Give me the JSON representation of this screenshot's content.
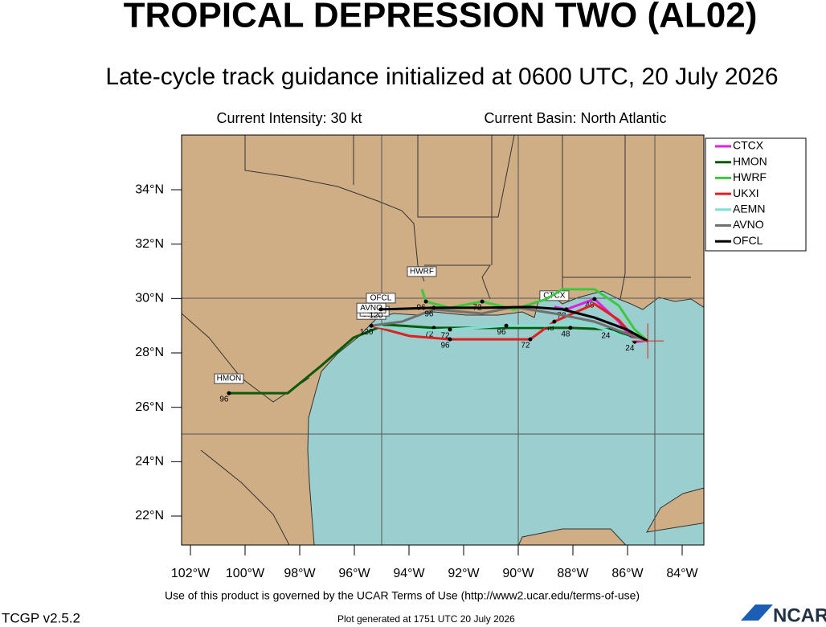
{
  "header": {
    "title": "TROPICAL DEPRESSION TWO (AL02)",
    "subtitle": "Late-cycle track guidance initialized at 0600 UTC, 20 July 2026",
    "intensity": "Current Intensity: 30 kt",
    "basin": "Current Basin: North Atlantic"
  },
  "map": {
    "lat_ticks": [
      {
        "value": 34,
        "label": "34°N"
      },
      {
        "value": 32,
        "label": "32°N"
      },
      {
        "value": 30,
        "label": "30°N"
      },
      {
        "value": 28,
        "label": "28°N"
      },
      {
        "value": 26,
        "label": "26°N"
      },
      {
        "value": 24,
        "label": "24°N"
      },
      {
        "value": 22,
        "label": "22°N"
      }
    ],
    "lon_ticks": [
      {
        "value": -102,
        "label": "102°W"
      },
      {
        "value": -100,
        "label": "100°W"
      },
      {
        "value": -98,
        "label": "98°W"
      },
      {
        "value": -96,
        "label": "96°W"
      },
      {
        "value": -94,
        "label": "94°W"
      },
      {
        "value": -92,
        "label": "92°W"
      },
      {
        "value": -90,
        "label": "90°W"
      },
      {
        "value": -88,
        "label": "88°W"
      },
      {
        "value": -86,
        "label": "86°W"
      },
      {
        "value": -84,
        "label": "84°W"
      }
    ],
    "current_position": {
      "lon": -85.26,
      "lat": 28.44
    },
    "tracks": [
      {
        "name": "CTCX",
        "color": "#e020e0",
        "points": [
          {
            "lon": -85.26,
            "lat": 28.44
          },
          {
            "lon": -85.74,
            "lat": 28.41,
            "hour": "24"
          },
          {
            "lon": -86.32,
            "lat": 29.15
          },
          {
            "lon": -87.21,
            "lat": 29.98,
            "hour": "48"
          },
          {
            "lon": -88.24,
            "lat": 29.6,
            "hour": "72"
          },
          {
            "lon": -88.68,
            "lat": 29.69
          }
        ]
      },
      {
        "name": "HMON",
        "color": "#0a5a0a",
        "points": [
          {
            "lon": -85.26,
            "lat": 28.44
          },
          {
            "lon": -86.62,
            "lat": 28.86,
            "hour": "24"
          },
          {
            "lon": -88.09,
            "lat": 28.92,
            "hour": "48"
          },
          {
            "lon": -88.97,
            "lat": 28.92
          },
          {
            "lon": -91.32,
            "lat": 28.92
          },
          {
            "lon": -93.09,
            "lat": 28.92,
            "hour": "72"
          },
          {
            "lon": -94.85,
            "lat": 29.04
          },
          {
            "lon": -96.03,
            "lat": 28.56
          },
          {
            "lon": -97.21,
            "lat": 27.53
          },
          {
            "lon": -98.44,
            "lat": 26.52
          },
          {
            "lon": -100.59,
            "lat": 26.52,
            "hour": "96"
          }
        ]
      },
      {
        "name": "HWRF",
        "color": "#3cc83c",
        "points": [
          {
            "lon": -85.26,
            "lat": 28.44
          },
          {
            "lon": -85.74,
            "lat": 28.86
          },
          {
            "lon": -86.32,
            "lat": 29.74
          },
          {
            "lon": -87.21,
            "lat": 30.34
          },
          {
            "lon": -88.38,
            "lat": 30.34
          },
          {
            "lon": -88.97,
            "lat": 29.98
          },
          {
            "lon": -90.15,
            "lat": 29.6
          },
          {
            "lon": -91.32,
            "lat": 29.89,
            "hour": "72"
          },
          {
            "lon": -92.5,
            "lat": 29.66
          },
          {
            "lon": -93.38,
            "lat": 29.89,
            "hour": "96"
          },
          {
            "lon": -93.53,
            "lat": 30.34
          }
        ]
      },
      {
        "name": "UKXI",
        "color": "#e02020",
        "points": [
          {
            "lon": -85.26,
            "lat": 28.44
          },
          {
            "lon": -85.74,
            "lat": 28.56
          },
          {
            "lon": -86.32,
            "lat": 29.21
          },
          {
            "lon": -87.21,
            "lat": 29.8
          },
          {
            "lon": -88.68,
            "lat": 29.15,
            "hour": "48"
          },
          {
            "lon": -89.56,
            "lat": 28.5,
            "hour": "72"
          },
          {
            "lon": -92.5,
            "lat": 28.5,
            "hour": "96"
          },
          {
            "lon": -93.97,
            "lat": 28.62
          },
          {
            "lon": -95.38,
            "lat": 29.0
          }
        ]
      },
      {
        "name": "AEMN",
        "color": "#80e0d0",
        "points": [
          {
            "lon": -85.26,
            "lat": 28.44
          },
          {
            "lon": -85.88,
            "lat": 28.5
          },
          {
            "lon": -86.62,
            "lat": 28.8
          },
          {
            "lon": -87.79,
            "lat": 29.15
          },
          {
            "lon": -88.97,
            "lat": 29.0
          },
          {
            "lon": -90.44,
            "lat": 29.0,
            "hour": "96"
          },
          {
            "lon": -92.5,
            "lat": 28.86,
            "hour": "72"
          },
          {
            "lon": -93.97,
            "lat": 28.8
          },
          {
            "lon": -95.26,
            "lat": 29.0
          }
        ]
      },
      {
        "name": "AVNO",
        "color": "#707070",
        "points": [
          {
            "lon": -85.26,
            "lat": 28.44
          },
          {
            "lon": -86.03,
            "lat": 28.71
          },
          {
            "lon": -87.21,
            "lat": 29.15
          },
          {
            "lon": -88.68,
            "lat": 29.45
          },
          {
            "lon": -90.15,
            "lat": 29.69
          },
          {
            "lon": -91.32,
            "lat": 29.45
          },
          {
            "lon": -93.09,
            "lat": 29.6
          },
          {
            "lon": -94.26,
            "lat": 29.15
          },
          {
            "lon": -95.38,
            "lat": 29.0,
            "hour": "120"
          }
        ]
      },
      {
        "name": "OFCL",
        "color": "#000000",
        "points": [
          {
            "lon": -85.26,
            "lat": 28.44
          },
          {
            "lon": -86.03,
            "lat": 28.86
          },
          {
            "lon": -87.21,
            "lat": 29.3
          },
          {
            "lon": -88.38,
            "lat": 29.6
          },
          {
            "lon": -89.56,
            "lat": 29.69
          },
          {
            "lon": -91.32,
            "lat": 29.66
          },
          {
            "lon": -93.09,
            "lat": 29.66,
            "hour": "96"
          },
          {
            "lon": -95.03,
            "lat": 29.6,
            "hour": "120"
          }
        ]
      }
    ]
  },
  "footer": {
    "terms": "Use of this product is governed by the UCAR Terms of Use (http://www2.ucar.edu/terms-of-use)",
    "version": "TCGP v2.5.2",
    "generated": "Plot generated at 1751 UTC   20 July 2026",
    "logo": "NCAR"
  }
}
